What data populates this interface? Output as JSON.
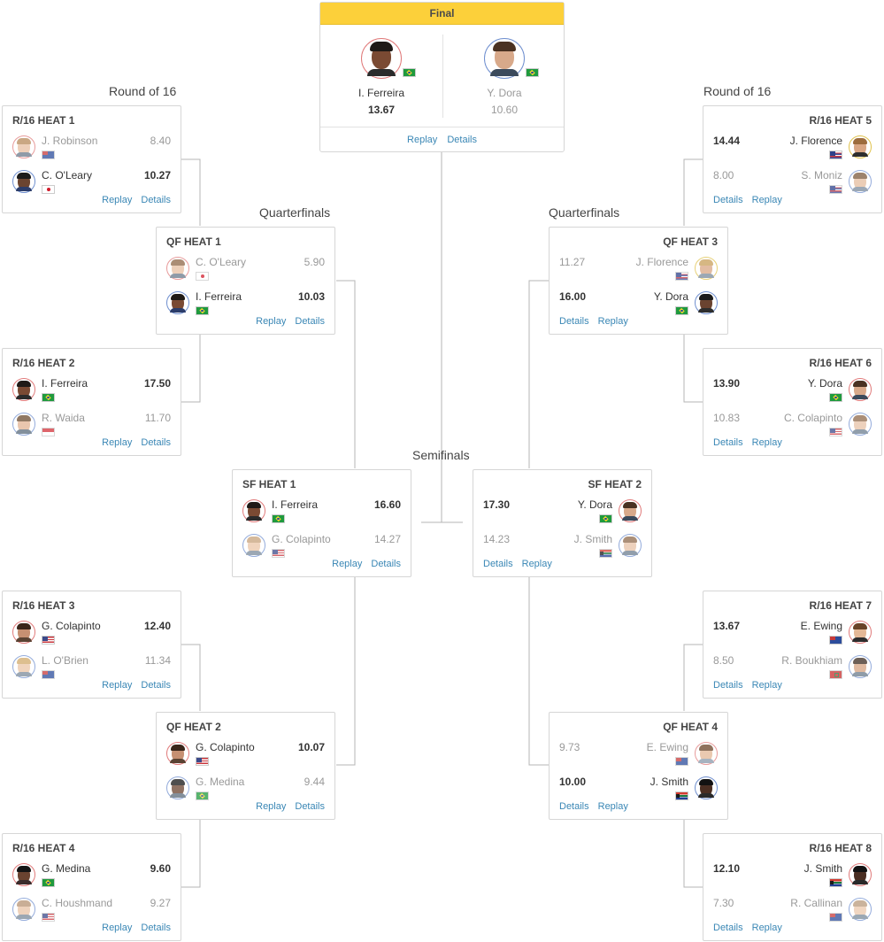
{
  "colors": {
    "final_header": "#fcd03a",
    "link": "#3a87b5",
    "winner_text": "#333333",
    "loser_text": "#999999",
    "card_border": "#d6d6d6",
    "connector": "#b5b5b5"
  },
  "final": {
    "title": "Final",
    "player1": {
      "name": "I. Ferreira",
      "score": "13.67",
      "flag": "flag-brazil",
      "avatar": "surfer-ferreira-photo"
    },
    "player2": {
      "name": "Y. Dora",
      "score": "10.60",
      "flag": "flag-brazil",
      "avatar": "surfer-dora-photo"
    },
    "replay_label": "Replay",
    "details_label": "Details"
  },
  "rounds": {
    "r16_left": "Round of 16",
    "r16_right": "Round of 16",
    "qf_left": "Quarterfinals",
    "qf_right": "Quarterfinals",
    "sf": "Semifinals"
  },
  "heats": {
    "r16_1": {
      "title": "R/16 HEAT 1",
      "replay": "Replay",
      "details": "Details",
      "p1": {
        "name": "J. Robinson",
        "score": "8.40",
        "flag": "flag-australia"
      },
      "p2": {
        "name": "C. O'Leary",
        "score": "10.27",
        "flag": "flag-japan"
      }
    },
    "r16_2": {
      "title": "R/16 HEAT 2",
      "replay": "Replay",
      "details": "Details",
      "p1": {
        "name": "I. Ferreira",
        "score": "17.50",
        "flag": "flag-brazil"
      },
      "p2": {
        "name": "R. Waida",
        "score": "11.70",
        "flag": "flag-indonesia"
      }
    },
    "r16_3": {
      "title": "R/16 HEAT 3",
      "replay": "Replay",
      "details": "Details",
      "p1": {
        "name": "G. Colapinto",
        "score": "12.40",
        "flag": "flag-usa"
      },
      "p2": {
        "name": "L. O'Brien",
        "score": "11.34",
        "flag": "flag-australia"
      }
    },
    "r16_4": {
      "title": "R/16 HEAT 4",
      "replay": "Replay",
      "details": "Details",
      "p1": {
        "name": "G. Medina",
        "score": "9.60",
        "flag": "flag-brazil"
      },
      "p2": {
        "name": "C. Houshmand",
        "score": "9.27",
        "flag": "flag-usa"
      }
    },
    "r16_5": {
      "title": "R/16 HEAT 5",
      "replay": "Replay",
      "details": "Details",
      "p1": {
        "name": "J. Florence",
        "score": "14.44",
        "flag": "flag-hawaii"
      },
      "p2": {
        "name": "S. Moniz",
        "score": "8.00",
        "flag": "flag-hawaii"
      }
    },
    "r16_6": {
      "title": "R/16 HEAT 6",
      "replay": "Replay",
      "details": "Details",
      "p1": {
        "name": "Y. Dora",
        "score": "13.90",
        "flag": "flag-brazil"
      },
      "p2": {
        "name": "C. Colapinto",
        "score": "10.83",
        "flag": "flag-usa"
      }
    },
    "r16_7": {
      "title": "R/16 HEAT 7",
      "replay": "Replay",
      "details": "Details",
      "p1": {
        "name": "E. Ewing",
        "score": "13.67",
        "flag": "flag-australia"
      },
      "p2": {
        "name": "R. Boukhiam",
        "score": "8.50",
        "flag": "flag-morocco"
      }
    },
    "r16_8": {
      "title": "R/16 HEAT 8",
      "replay": "Replay",
      "details": "Details",
      "p1": {
        "name": "J. Smith",
        "score": "12.10",
        "flag": "flag-south-africa"
      },
      "p2": {
        "name": "R. Callinan",
        "score": "7.30",
        "flag": "flag-australia"
      }
    },
    "qf_1": {
      "title": "QF HEAT 1",
      "replay": "Replay",
      "details": "Details",
      "p1": {
        "name": "C. O'Leary",
        "score": "5.90",
        "flag": "flag-japan"
      },
      "p2": {
        "name": "I. Ferreira",
        "score": "10.03",
        "flag": "flag-brazil"
      }
    },
    "qf_2": {
      "title": "QF HEAT 2",
      "replay": "Replay",
      "details": "Details",
      "p1": {
        "name": "G. Colapinto",
        "score": "10.07",
        "flag": "flag-usa"
      },
      "p2": {
        "name": "G. Medina",
        "score": "9.44",
        "flag": "flag-brazil"
      }
    },
    "qf_3": {
      "title": "QF HEAT 3",
      "replay": "Replay",
      "details": "Details",
      "p1": {
        "name": "J. Florence",
        "score": "11.27",
        "flag": "flag-hawaii"
      },
      "p2": {
        "name": "Y. Dora",
        "score": "16.00",
        "flag": "flag-brazil"
      }
    },
    "qf_4": {
      "title": "QF HEAT 4",
      "replay": "Replay",
      "details": "Details",
      "p1": {
        "name": "E. Ewing",
        "score": "9.73",
        "flag": "flag-australia"
      },
      "p2": {
        "name": "J. Smith",
        "score": "10.00",
        "flag": "flag-south-africa"
      }
    },
    "sf_1": {
      "title": "SF HEAT 1",
      "replay": "Replay",
      "details": "Details",
      "p1": {
        "name": "I. Ferreira",
        "score": "16.60",
        "flag": "flag-brazil"
      },
      "p2": {
        "name": "G. Colapinto",
        "score": "14.27",
        "flag": "flag-usa"
      }
    },
    "sf_2": {
      "title": "SF HEAT 2",
      "replay": "Replay",
      "details": "Details",
      "p1": {
        "name": "Y. Dora",
        "score": "17.30",
        "flag": "flag-brazil"
      },
      "p2": {
        "name": "J. Smith",
        "score": "14.23",
        "flag": "flag-south-africa"
      }
    }
  }
}
